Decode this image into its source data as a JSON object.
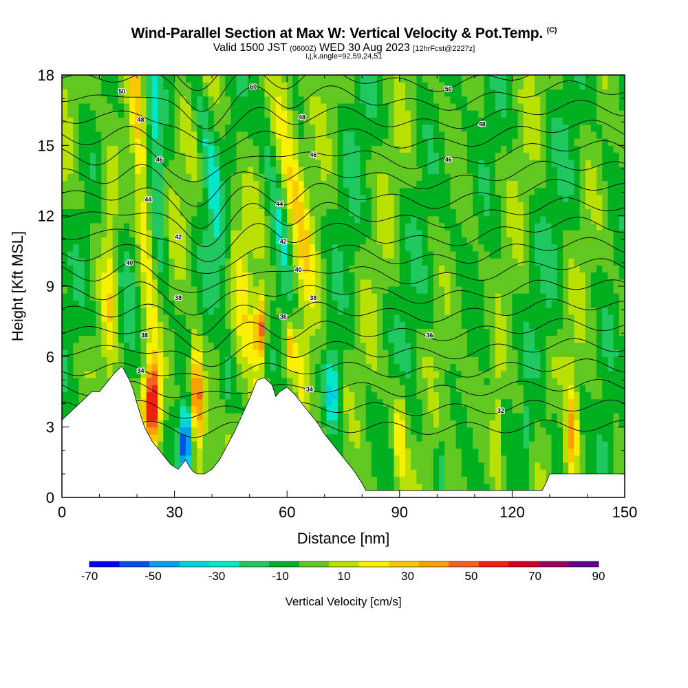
{
  "title": {
    "main": "Wind-Parallel Section at Max W: Vertical Velocity & Pot.Temp.",
    "copyright": "(C)",
    "valid_prefix": "Valid 1500 JST",
    "valid_utc": "(0600Z)",
    "valid_date": "WED 30 Aug 2023",
    "forecast": "[12hrFcst@2227z]",
    "info": "i,j,k,angle=92,59,24,51"
  },
  "chart_data": {
    "type": "heatmap",
    "xlabel": "Distance [nm]",
    "ylabel": "Height [Kft MSL]",
    "xlim": [
      0,
      150
    ],
    "ylim": [
      0,
      18
    ],
    "x_ticks": [
      0,
      30,
      60,
      90,
      120,
      150
    ],
    "x_tick_labels": [
      "0",
      "30",
      "60",
      "90",
      "120",
      "150"
    ],
    "y_ticks": [
      0,
      3,
      6,
      9,
      12,
      15,
      18
    ],
    "y_tick_labels": [
      "0",
      "3",
      "6",
      "9",
      "12",
      "15",
      "18"
    ],
    "colorbar": {
      "title": "Vertical Velocity [cm/s]",
      "boundaries": [
        -70,
        -60,
        -50,
        -40,
        -30,
        -20,
        -10,
        0,
        10,
        20,
        30,
        40,
        50,
        60,
        70,
        80,
        90
      ],
      "labels": [
        "-70",
        "-50",
        "-30",
        "-10",
        "10",
        "30",
        "50",
        "70",
        "90"
      ],
      "colors": [
        "#0000f0",
        "#0050f0",
        "#00a0f0",
        "#00d0e0",
        "#00e8c8",
        "#20c860",
        "#00b020",
        "#60c820",
        "#b8e000",
        "#f8f000",
        "#f8c800",
        "#f8a000",
        "#f86020",
        "#f02010",
        "#d00020",
        "#a00060",
        "#600090"
      ]
    },
    "terrain": [
      [
        0,
        3.3
      ],
      [
        2,
        3.6
      ],
      [
        4,
        3.9
      ],
      [
        6,
        4.2
      ],
      [
        8,
        4.5
      ],
      [
        10,
        4.5
      ],
      [
        12,
        4.9
      ],
      [
        14,
        5.3
      ],
      [
        16,
        5.6
      ],
      [
        17,
        5.3
      ],
      [
        18,
        5
      ],
      [
        19,
        4.6
      ],
      [
        20,
        4
      ],
      [
        21,
        3.5
      ],
      [
        22,
        3.0
      ],
      [
        23,
        2.7
      ],
      [
        24,
        2.4
      ],
      [
        25,
        2.2
      ],
      [
        26,
        2
      ],
      [
        27,
        1.8
      ],
      [
        28,
        1.6
      ],
      [
        29,
        1.4
      ],
      [
        30,
        1.3
      ],
      [
        31,
        1.2
      ],
      [
        32,
        1.4
      ],
      [
        33,
        1.6
      ],
      [
        34,
        1.3
      ],
      [
        35,
        1.1
      ],
      [
        36,
        1.0
      ],
      [
        38,
        1.0
      ],
      [
        40,
        1.2
      ],
      [
        42,
        1.6
      ],
      [
        44,
        2.2
      ],
      [
        46,
        2.8
      ],
      [
        48,
        3.5
      ],
      [
        50,
        4.2
      ],
      [
        52,
        5.0
      ],
      [
        54,
        5.1
      ],
      [
        56,
        4.8
      ],
      [
        57,
        4.3
      ],
      [
        58,
        4.5
      ],
      [
        60,
        4.7
      ],
      [
        62,
        4.4
      ],
      [
        64,
        4.0
      ],
      [
        66,
        3.6
      ],
      [
        68,
        3.2
      ],
      [
        70,
        2.7
      ],
      [
        72,
        2.3
      ],
      [
        74,
        1.9
      ],
      [
        76,
        1.5
      ],
      [
        78,
        1.1
      ],
      [
        80,
        0.6
      ],
      [
        81,
        0.3
      ],
      [
        84,
        0.3
      ],
      [
        87,
        0.3
      ],
      [
        128,
        0.3
      ],
      [
        129,
        0.6
      ],
      [
        130,
        1.0
      ],
      [
        140,
        1.0
      ],
      [
        150,
        1.0
      ]
    ],
    "isentropes": [
      {
        "base": 34,
        "label": "34",
        "label_x": 22
      },
      {
        "base": 36,
        "label": "36",
        "label_x": 60
      },
      {
        "base": 38,
        "label": "38",
        "label_x": 22
      },
      {
        "base": 40,
        "label": "40",
        "label_x": 18
      },
      {
        "base": 42,
        "label": "42",
        "label_x": 30
      },
      {
        "base": 44,
        "label": "44",
        "label_x": 24
      },
      {
        "base": 46,
        "label": "46",
        "label_x": 26
      },
      {
        "base": 48,
        "label": "48",
        "label_x": 22
      },
      {
        "base": 50,
        "label": "50",
        "label_x": 16
      }
    ],
    "contour_label_list": [
      "50",
      "60",
      "48",
      "48",
      "46",
      "46",
      "44",
      "44",
      "42",
      "42",
      "40",
      "40",
      "38",
      "38",
      "38",
      "36",
      "36",
      "34",
      "34",
      "32",
      "48",
      "46",
      "50"
    ]
  }
}
